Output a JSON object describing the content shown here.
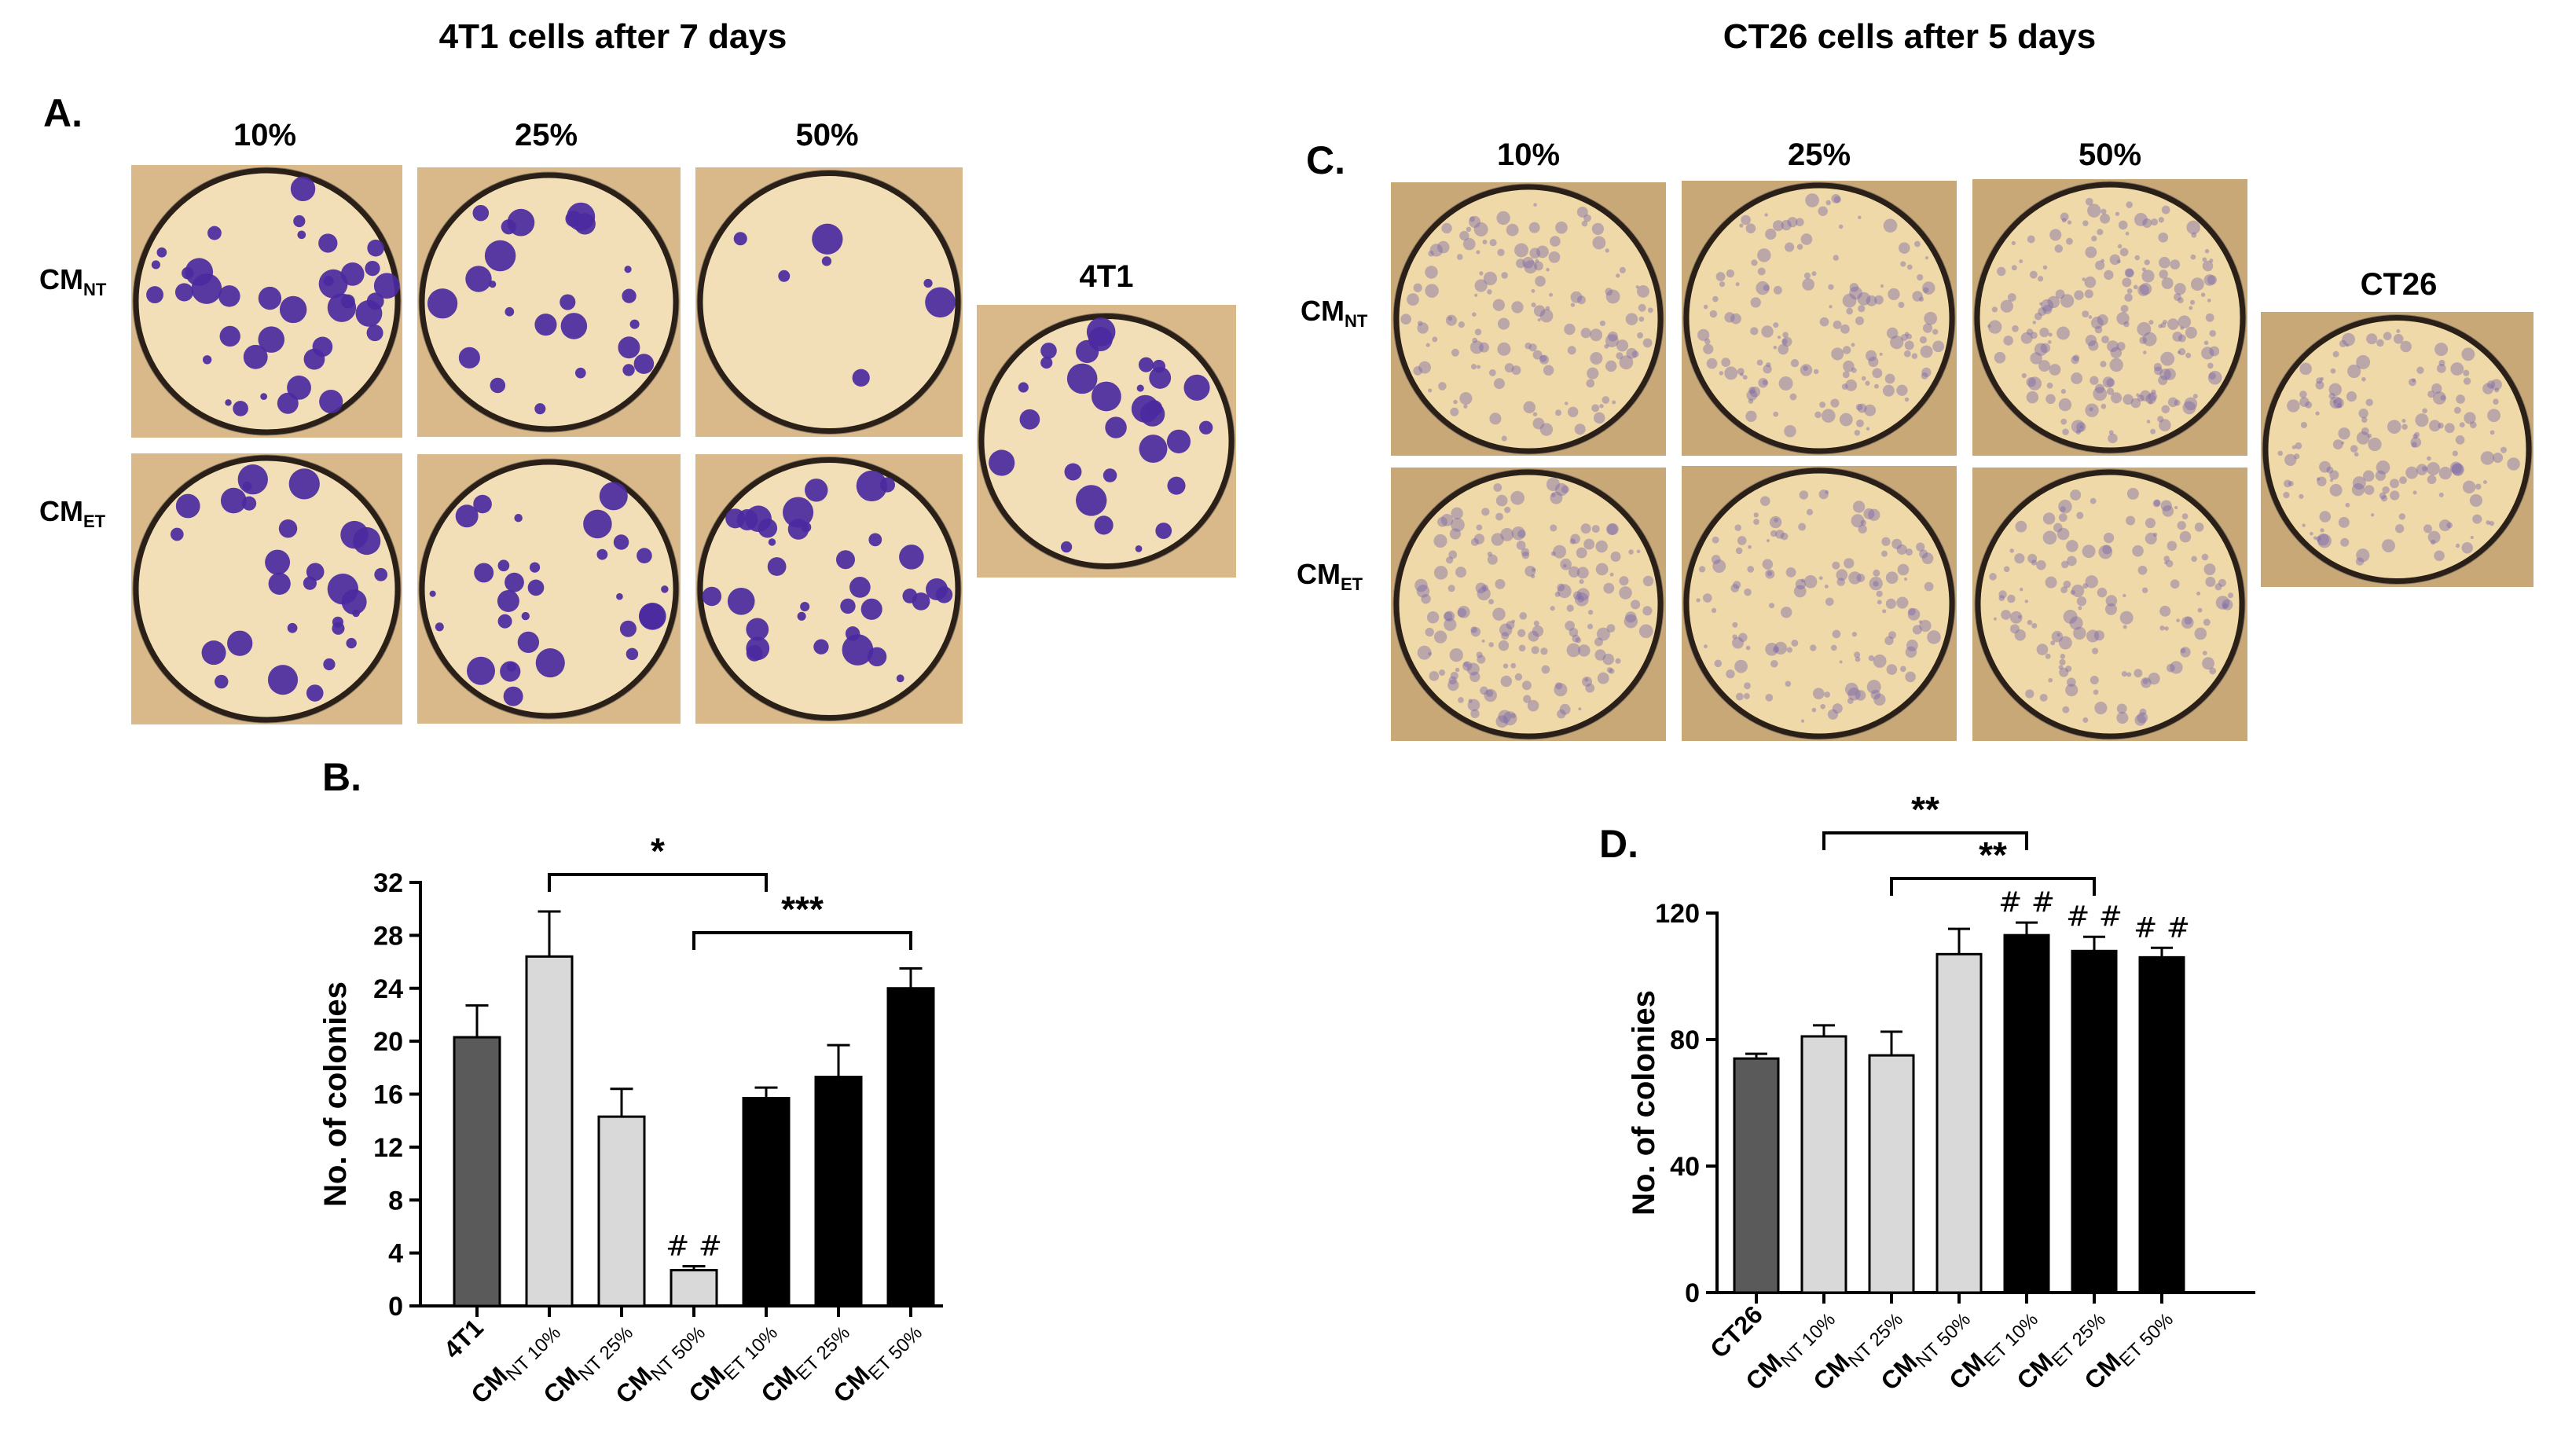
{
  "titles": {
    "left": "4T1 cells after 7 days",
    "right": "CT26 cells after 5 days"
  },
  "panel_letters": {
    "a": "A.",
    "b": "B.",
    "c": "C.",
    "d": "D."
  },
  "image_panels": {
    "left": {
      "concentrations": [
        "10%",
        "25%",
        "50%"
      ],
      "rows": [
        {
          "main": "CM",
          "sub": "NT"
        },
        {
          "main": "CM",
          "sub": "ET"
        }
      ],
      "control": "4T1",
      "stain_color": "#4b2aa0",
      "dish_color": "#f2dfb8"
    },
    "right": {
      "concentrations": [
        "10%",
        "25%",
        "50%"
      ],
      "rows": [
        {
          "main": "CM",
          "sub": "NT"
        },
        {
          "main": "CM",
          "sub": "ET"
        }
      ],
      "control": "CT26",
      "stain_color": "#7d6aa8",
      "dish_color": "#f0d9a8"
    }
  },
  "chart_data": [
    {
      "type": "bar",
      "panel": "B",
      "ylabel": "No. of colonies",
      "xlabel": "",
      "ylim": [
        0,
        32
      ],
      "yticks": [
        0,
        4,
        8,
        12,
        16,
        20,
        24,
        28,
        32
      ],
      "categories": [
        {
          "main": "4T1",
          "sub": "",
          "suffix": ""
        },
        {
          "main": "CM",
          "sub": "NT",
          "suffix": " 10%"
        },
        {
          "main": "CM",
          "sub": "NT",
          "suffix": " 25%"
        },
        {
          "main": "CM",
          "sub": "NT",
          "suffix": " 50%"
        },
        {
          "main": "CM",
          "sub": "ET",
          "suffix": " 10%"
        },
        {
          "main": "CM",
          "sub": "ET",
          "suffix": " 25%"
        },
        {
          "main": "CM",
          "sub": "ET",
          "suffix": " 50%"
        }
      ],
      "values": [
        20.3,
        26.4,
        14.3,
        2.7,
        15.7,
        17.3,
        24.0
      ],
      "errors": [
        2.4,
        3.4,
        2.1,
        0.3,
        0.8,
        2.4,
        1.5
      ],
      "colors": [
        "#5a5a5a",
        "#d9d9d9",
        "#d9d9d9",
        "#d9d9d9",
        "#000000",
        "#000000",
        "#000000"
      ],
      "annotations": [
        {
          "bar": 3,
          "text": "# #"
        }
      ],
      "significance": [
        {
          "from": 1,
          "to": 4,
          "label": "*"
        },
        {
          "from": 3,
          "to": 6,
          "label": "***"
        }
      ]
    },
    {
      "type": "bar",
      "panel": "D",
      "ylabel": "No. of colonies",
      "xlabel": "",
      "ylim": [
        0,
        120
      ],
      "yticks": [
        0,
        40,
        80,
        120
      ],
      "categories": [
        {
          "main": "CT26",
          "sub": "",
          "suffix": ""
        },
        {
          "main": "CM",
          "sub": "NT",
          "suffix": " 10%"
        },
        {
          "main": "CM",
          "sub": "NT",
          "suffix": " 25%"
        },
        {
          "main": "CM",
          "sub": "NT",
          "suffix": " 50%"
        },
        {
          "main": "CM",
          "sub": "ET",
          "suffix": " 10%"
        },
        {
          "main": "CM",
          "sub": "ET",
          "suffix": " 25%"
        },
        {
          "main": "CM",
          "sub": "ET",
          "suffix": " 50%"
        }
      ],
      "values": [
        74,
        81,
        75,
        107,
        113,
        108,
        106
      ],
      "errors": [
        1.5,
        3.5,
        7.5,
        8,
        4,
        4.5,
        3
      ],
      "colors": [
        "#5a5a5a",
        "#d9d9d9",
        "#d9d9d9",
        "#d9d9d9",
        "#000000",
        "#000000",
        "#000000"
      ],
      "annotations": [
        {
          "bar": 4,
          "text": "# #"
        },
        {
          "bar": 5,
          "text": "# #"
        },
        {
          "bar": 6,
          "text": "# #"
        }
      ],
      "significance": [
        {
          "from": 1,
          "to": 4,
          "label": "**"
        },
        {
          "from": 2,
          "to": 5,
          "label": "**"
        }
      ]
    }
  ]
}
